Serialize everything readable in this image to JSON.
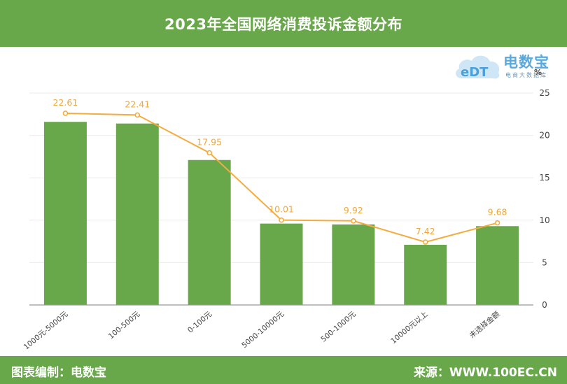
{
  "header": {
    "title": "2023年全国网络消费投诉金额分布"
  },
  "logo": {
    "brand": "电数宝",
    "tagline": "电商大数据库",
    "mark": "eDT",
    "symbol": "%"
  },
  "footer": {
    "left": "图表编制：电数宝",
    "right": "来源：WWW.100EC.CN"
  },
  "colors": {
    "bar": "#69a74b",
    "line": "#f4ac3e",
    "label": "#f0a83a",
    "header": "#69a74b"
  },
  "chart_data": {
    "type": "bar",
    "categories": [
      "1000元-5000元",
      "100-500元",
      "0-100元",
      "5000-10000元",
      "500-1000元",
      "10000元以上",
      "未选择金额"
    ],
    "values": [
      22.61,
      22.41,
      17.95,
      10.01,
      9.92,
      7.42,
      9.68
    ],
    "line_values": [
      22.61,
      22.41,
      17.95,
      10.01,
      9.92,
      7.42,
      9.68
    ],
    "bar_values": [
      21.6,
      21.4,
      17.1,
      9.6,
      9.5,
      7.1,
      9.3
    ],
    "data_labels": [
      "22.61",
      "22.41",
      "17.95",
      "10.01",
      "9.92",
      "7.42",
      "9.68"
    ],
    "yticks": [
      "0",
      "5",
      "10",
      "15",
      "20",
      "25"
    ],
    "ylim": [
      0,
      25
    ],
    "y_axis_side": "right",
    "grid": true,
    "title": "",
    "xlabel": "",
    "ylabel": ""
  }
}
